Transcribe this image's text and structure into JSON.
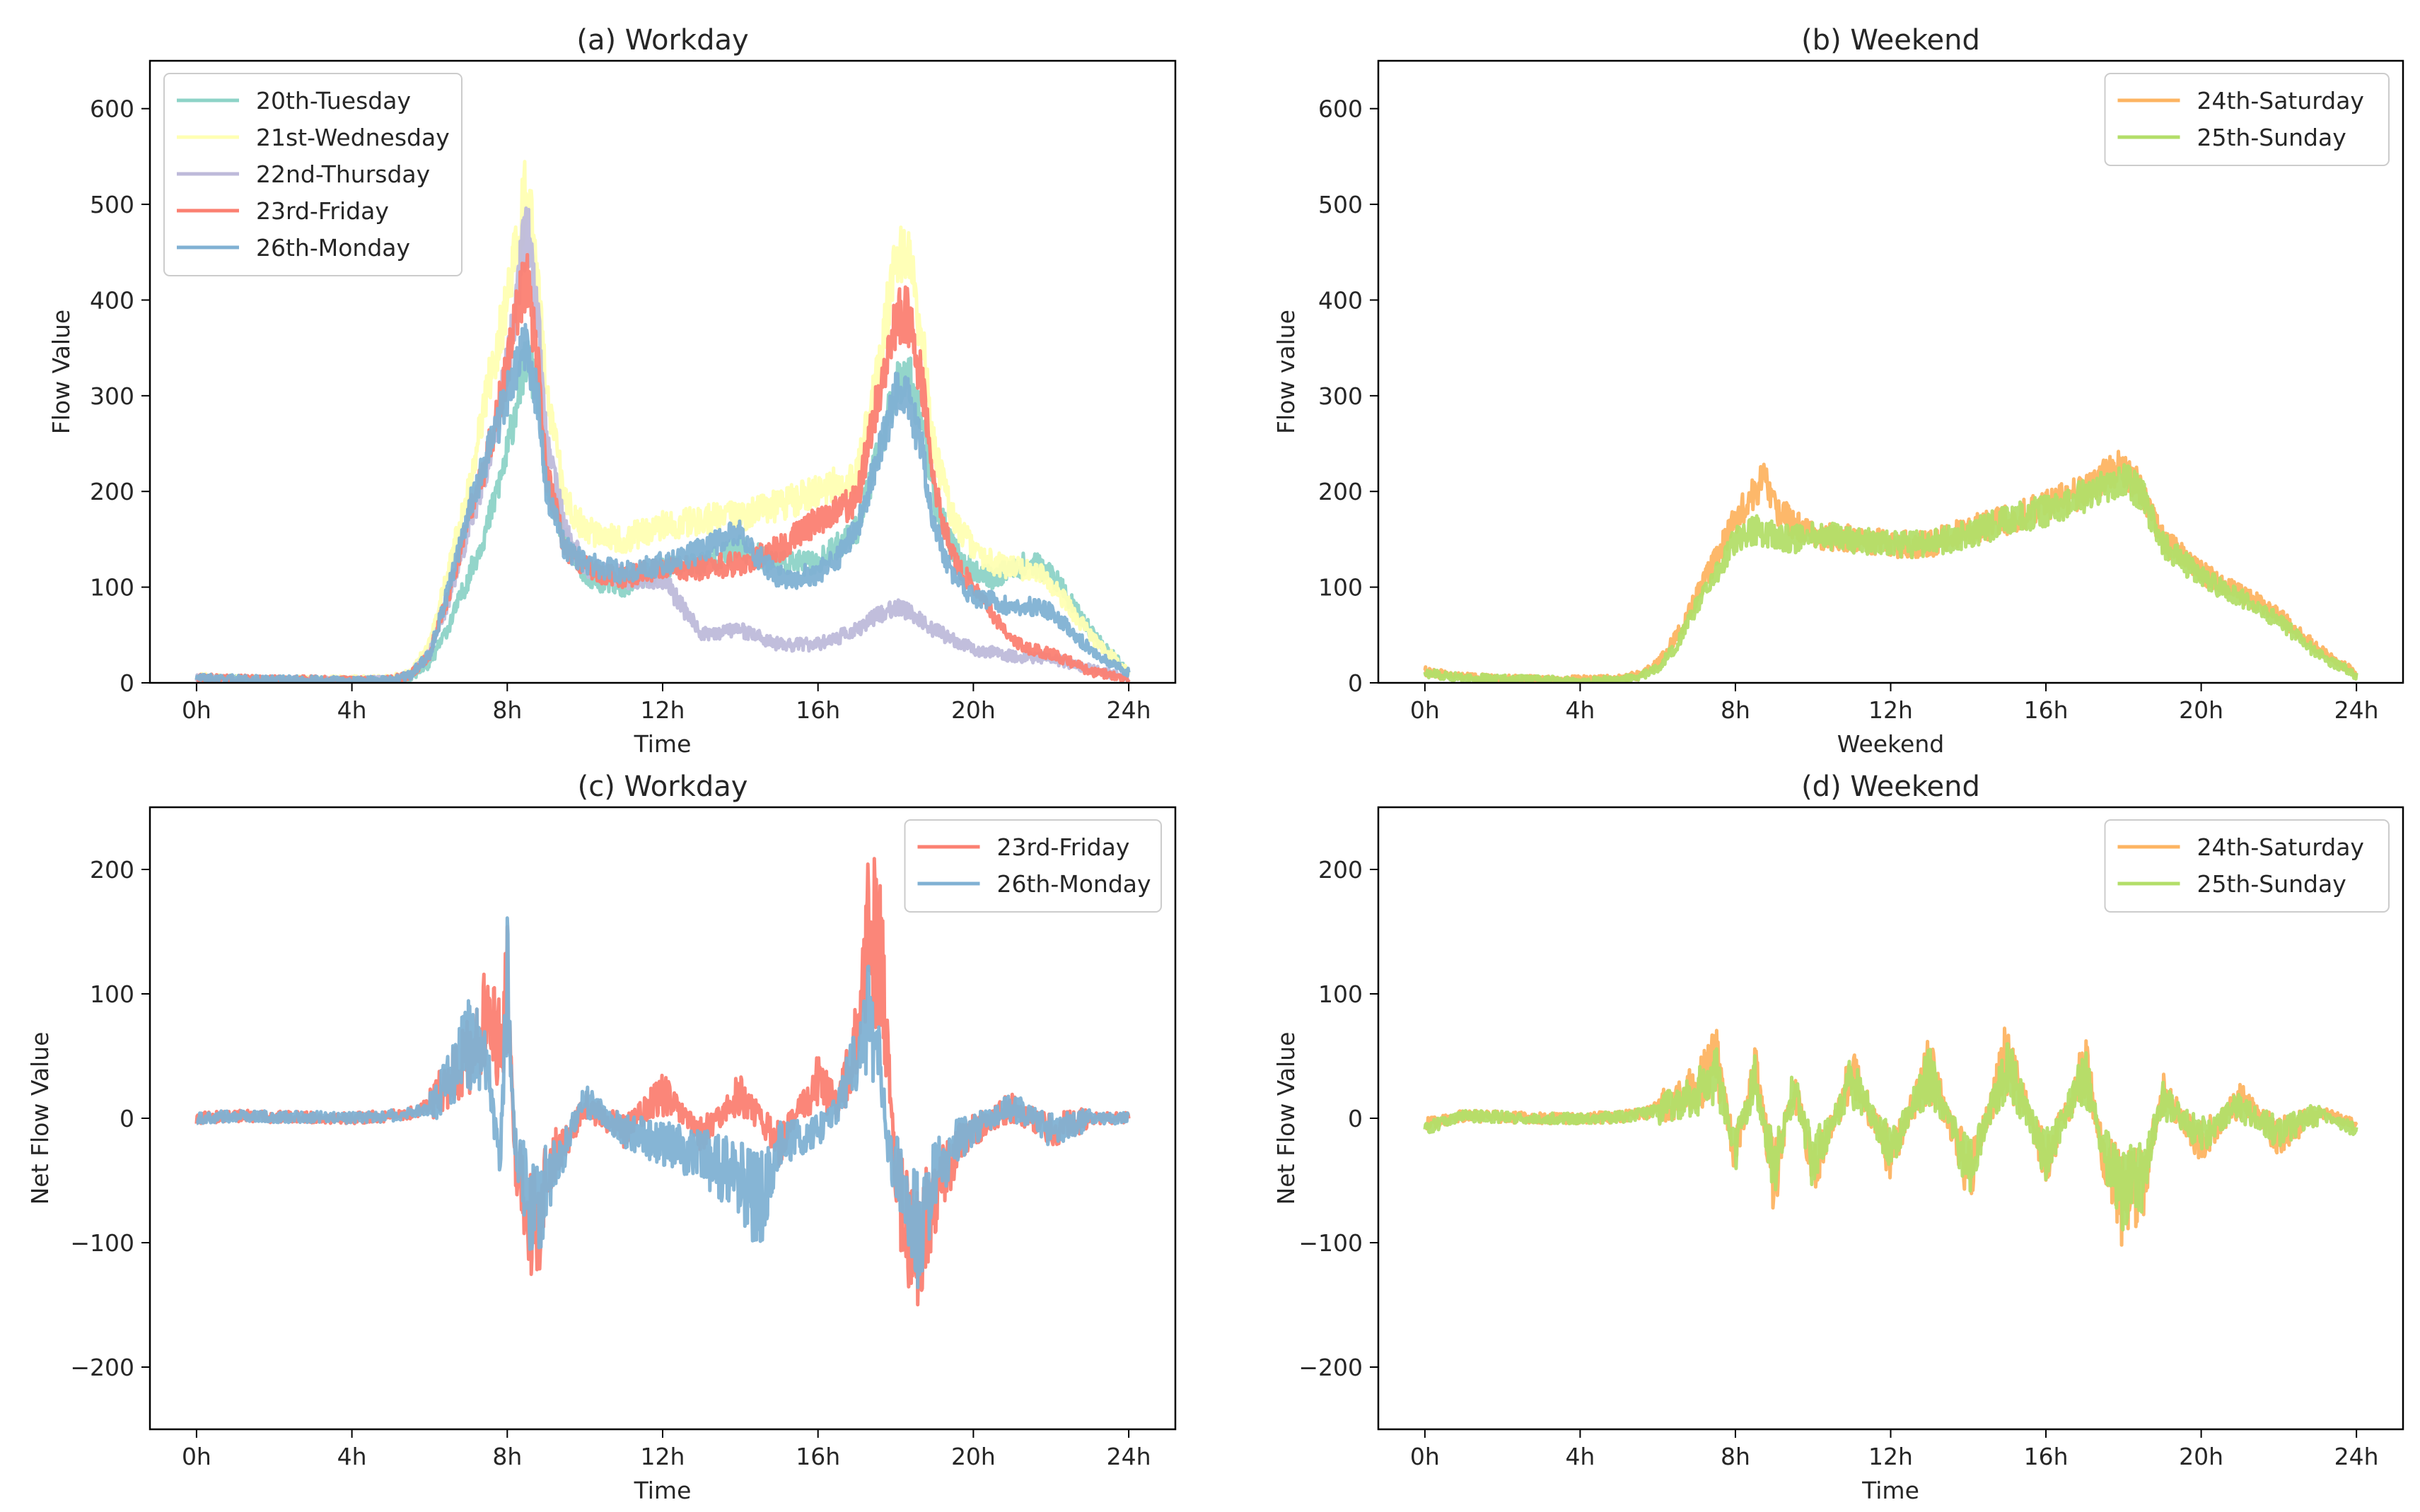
{
  "chart_data": [
    {
      "type": "line",
      "title": "(a) Workday",
      "xlabel": "Time",
      "ylabel": "Flow Value",
      "xlim": [
        -1.2,
        25.2
      ],
      "ylim": [
        0,
        650
      ],
      "x_ticks": [
        0,
        4,
        8,
        12,
        16,
        20,
        24
      ],
      "x_tick_labels": [
        "0h",
        "4h",
        "8h",
        "12h",
        "16h",
        "20h",
        "24h"
      ],
      "y_ticks": [
        0,
        100,
        200,
        300,
        400,
        500,
        600
      ],
      "y_tick_labels": [
        "0",
        "100",
        "200",
        "300",
        "400",
        "500",
        "600"
      ],
      "legend_position": "top-left",
      "series": [
        {
          "name": "20th-Tuesday",
          "color": "#8dd3c7",
          "x": [
            0,
            1,
            2,
            3,
            4,
            5,
            5.5,
            6,
            6.5,
            7,
            7.5,
            8,
            8.3,
            8.5,
            8.8,
            9,
            9.5,
            10,
            11,
            12,
            13,
            14,
            15,
            16,
            17,
            17.5,
            18,
            18.3,
            18.7,
            19,
            19.5,
            20,
            20.5,
            21,
            21.5,
            22,
            23,
            24
          ],
          "values": [
            4,
            3,
            3,
            2,
            2,
            3,
            6,
            20,
            60,
            110,
            165,
            240,
            310,
            340,
            300,
            210,
            150,
            110,
            100,
            120,
            125,
            140,
            125,
            125,
            160,
            230,
            310,
            325,
            270,
            190,
            140,
            115,
            110,
            120,
            125,
            115,
            55,
            10
          ]
        },
        {
          "name": "21st-Wednesday",
          "color": "#ffffb3",
          "x": [
            0,
            1,
            2,
            3,
            4,
            5,
            5.5,
            6,
            6.5,
            7,
            7.5,
            8,
            8.3,
            8.5,
            8.8,
            9,
            9.5,
            10,
            11,
            12,
            13,
            14,
            15,
            16,
            17,
            17.5,
            18,
            18.3,
            18.7,
            19,
            19.5,
            20,
            20.5,
            21,
            21.5,
            22,
            23,
            24
          ],
          "values": [
            6,
            4,
            3,
            3,
            3,
            4,
            10,
            40,
            120,
            200,
            310,
            400,
            470,
            520,
            420,
            300,
            190,
            160,
            150,
            165,
            170,
            175,
            185,
            200,
            215,
            320,
            440,
            450,
            350,
            240,
            170,
            140,
            125,
            120,
            120,
            105,
            50,
            10
          ]
        },
        {
          "name": "22nd-Thursday",
          "color": "#bebada",
          "x": [
            0,
            1,
            2,
            3,
            4,
            5,
            5.5,
            6,
            6.5,
            7,
            7.5,
            8,
            8.3,
            8.5,
            8.8,
            9,
            9.5,
            10,
            11,
            12,
            12.5,
            13,
            14,
            15,
            16,
            17,
            17.5,
            18,
            18.5,
            19,
            20,
            21,
            22,
            23,
            24
          ],
          "values": [
            4,
            3,
            3,
            2,
            2,
            3,
            8,
            30,
            90,
            160,
            230,
            330,
            420,
            480,
            380,
            250,
            160,
            120,
            110,
            110,
            80,
            50,
            55,
            40,
            40,
            55,
            70,
            80,
            70,
            55,
            35,
            28,
            25,
            15,
            5
          ]
        },
        {
          "name": "23rd-Friday",
          "color": "#fb8072",
          "x": [
            0,
            1,
            2,
            3,
            4,
            5,
            5.5,
            6,
            6.5,
            7,
            7.5,
            8,
            8.3,
            8.5,
            8.8,
            9,
            9.5,
            10,
            11,
            12,
            13,
            14,
            15,
            16,
            17,
            17.5,
            18,
            18.3,
            18.7,
            19,
            19.5,
            20,
            20.5,
            21,
            21.5,
            22,
            22.5,
            23,
            24
          ],
          "values": [
            5,
            4,
            3,
            3,
            2,
            3,
            8,
            30,
            95,
            170,
            240,
            330,
            400,
            420,
            330,
            220,
            140,
            120,
            110,
            120,
            120,
            125,
            140,
            170,
            190,
            290,
            380,
            385,
            310,
            200,
            130,
            100,
            70,
            45,
            35,
            30,
            22,
            12,
            5
          ]
        },
        {
          "name": "26th-Monday",
          "color": "#80b1d3",
          "x": [
            0,
            1,
            2,
            3,
            4,
            5,
            5.5,
            6,
            6.5,
            7,
            7.5,
            8,
            8.3,
            8.5,
            8.8,
            9,
            9.5,
            10,
            11,
            12,
            12.5,
            13,
            13.5,
            14,
            14.5,
            15,
            15.5,
            16,
            16.5,
            17,
            17.5,
            18,
            18.3,
            18.7,
            19,
            19.5,
            20,
            20.5,
            21,
            21.5,
            22,
            23,
            24
          ],
          "values": [
            5,
            4,
            3,
            3,
            2,
            3,
            8,
            30,
            100,
            180,
            240,
            300,
            340,
            350,
            290,
            200,
            140,
            125,
            115,
            125,
            130,
            140,
            150,
            155,
            130,
            110,
            110,
            115,
            130,
            160,
            230,
            300,
            300,
            240,
            160,
            110,
            90,
            85,
            80,
            80,
            75,
            35,
            10
          ]
        }
      ]
    },
    {
      "type": "line",
      "title": "(b) Weekend",
      "xlabel": "Weekend",
      "ylabel": "Flow value",
      "xlim": [
        -1.2,
        25.2
      ],
      "ylim": [
        0,
        650
      ],
      "x_ticks": [
        0,
        4,
        8,
        12,
        16,
        20,
        24
      ],
      "x_tick_labels": [
        "0h",
        "4h",
        "8h",
        "12h",
        "16h",
        "20h",
        "24h"
      ],
      "y_ticks": [
        0,
        100,
        200,
        300,
        400,
        500,
        600
      ],
      "y_tick_labels": [
        "0",
        "100",
        "200",
        "300",
        "400",
        "500",
        "600"
      ],
      "legend_position": "top-right",
      "series": [
        {
          "name": "24th-Saturday",
          "color": "#fdb462",
          "x": [
            0,
            1,
            2,
            3,
            4,
            5,
            5.5,
            6,
            6.5,
            7,
            7.5,
            8,
            8.5,
            8.8,
            9,
            9.5,
            10,
            11,
            12,
            13,
            14,
            15,
            16,
            17,
            17.5,
            18,
            18.5,
            19,
            20,
            21,
            22,
            23,
            24
          ],
          "values": [
            12,
            6,
            4,
            3,
            3,
            4,
            8,
            20,
            50,
            90,
            130,
            170,
            200,
            215,
            185,
            165,
            155,
            150,
            145,
            145,
            160,
            170,
            185,
            200,
            215,
            225,
            200,
            150,
            115,
            95,
            70,
            35,
            10
          ]
        },
        {
          "name": "25th-Sunday",
          "color": "#b3de69",
          "x": [
            0,
            1,
            2,
            3,
            4,
            5,
            5.5,
            6,
            6.5,
            7,
            7.5,
            8,
            8.5,
            9,
            9.5,
            10,
            11,
            12,
            13,
            14,
            15,
            16,
            17,
            17.5,
            18,
            18.5,
            19,
            20,
            21,
            22,
            23,
            24
          ],
          "values": [
            10,
            5,
            4,
            3,
            2,
            3,
            6,
            15,
            40,
            80,
            115,
            150,
            160,
            155,
            150,
            155,
            150,
            145,
            145,
            155,
            170,
            180,
            195,
            205,
            215,
            195,
            145,
            110,
            90,
            65,
            30,
            8
          ]
        }
      ]
    },
    {
      "type": "line",
      "title": "(c) Workday",
      "xlabel": "Time",
      "ylabel": "Net Flow Value",
      "xlim": [
        -1.2,
        25.2
      ],
      "ylim": [
        -250,
        250
      ],
      "x_ticks": [
        0,
        4,
        8,
        12,
        16,
        20,
        24
      ],
      "x_tick_labels": [
        "0h",
        "4h",
        "8h",
        "12h",
        "16h",
        "20h",
        "24h"
      ],
      "y_ticks": [
        -200,
        -100,
        0,
        100,
        200
      ],
      "y_tick_labels": [
        "−200",
        "−100",
        "0",
        "100",
        "200"
      ],
      "legend_position": "top-right",
      "series": [
        {
          "name": "23rd-Friday",
          "color": "#fb8072",
          "x": [
            0,
            1,
            2,
            3,
            4,
            5,
            5.5,
            6,
            6.5,
            7,
            7.5,
            7.8,
            8,
            8.2,
            8.5,
            8.8,
            9,
            9.5,
            10,
            11,
            12,
            13,
            14,
            15,
            16,
            16.5,
            17,
            17.3,
            17.6,
            17.8,
            18,
            18.3,
            18.6,
            19,
            19.5,
            20,
            21,
            22,
            23,
            24
          ],
          "values": [
            0,
            2,
            1,
            1,
            0,
            2,
            4,
            10,
            30,
            50,
            80,
            60,
            100,
            -30,
            -70,
            -100,
            -40,
            -20,
            10,
            -10,
            20,
            -15,
            20,
            -20,
            30,
            10,
            60,
            140,
            150,
            50,
            -50,
            -90,
            -110,
            -60,
            -30,
            -10,
            10,
            -10,
            0,
            0
          ]
        },
        {
          "name": "26th-Monday",
          "color": "#80b1d3",
          "x": [
            0,
            1,
            2,
            3,
            4,
            5,
            5.5,
            6,
            6.5,
            7,
            7.5,
            7.8,
            8,
            8.2,
            8.5,
            8.8,
            9,
            9.5,
            10,
            11,
            12,
            13,
            14,
            14.5,
            15,
            16,
            16.5,
            17,
            17.3,
            17.6,
            17.8,
            18,
            18.3,
            18.6,
            19,
            19.5,
            20,
            21,
            22,
            23,
            24
          ],
          "values": [
            0,
            2,
            1,
            1,
            0,
            2,
            4,
            8,
            30,
            60,
            50,
            -50,
            115,
            -20,
            -60,
            -90,
            -50,
            -20,
            15,
            -10,
            -20,
            -30,
            -50,
            -70,
            -20,
            -10,
            10,
            50,
            80,
            40,
            -20,
            -40,
            -70,
            -90,
            -50,
            -20,
            -10,
            10,
            -10,
            0,
            0
          ]
        }
      ]
    },
    {
      "type": "line",
      "title": "(d) Weekend",
      "xlabel": "Time",
      "ylabel": "Net Flow Value",
      "xlim": [
        -1.2,
        25.2
      ],
      "ylim": [
        -250,
        250
      ],
      "x_ticks": [
        0,
        4,
        8,
        12,
        16,
        20,
        24
      ],
      "x_tick_labels": [
        "0h",
        "4h",
        "8h",
        "12h",
        "16h",
        "20h",
        "24h"
      ],
      "y_ticks": [
        -200,
        -100,
        0,
        100,
        200
      ],
      "y_tick_labels": [
        "−200",
        "−100",
        "0",
        "100",
        "200"
      ],
      "legend_position": "top-right",
      "series": [
        {
          "name": "24th-Saturday",
          "color": "#fdb462",
          "x": [
            0,
            1,
            2,
            3,
            4,
            5,
            5.5,
            6,
            6.5,
            7,
            7.5,
            8,
            8.5,
            9,
            9.5,
            10,
            11,
            12,
            13,
            14,
            15,
            16,
            17,
            17.5,
            18,
            18.5,
            19,
            20,
            21,
            22,
            23,
            24
          ],
          "values": [
            -5,
            2,
            1,
            0,
            0,
            1,
            3,
            8,
            15,
            25,
            45,
            -30,
            40,
            -50,
            30,
            -40,
            35,
            -30,
            40,
            -45,
            50,
            -35,
            45,
            -30,
            -70,
            -50,
            20,
            -20,
            15,
            -15,
            5,
            -5
          ]
        },
        {
          "name": "25th-Sunday",
          "color": "#b3de69",
          "x": [
            0,
            1,
            2,
            3,
            4,
            5,
            5.5,
            6,
            6.5,
            7,
            7.5,
            8,
            8.5,
            9,
            9.5,
            10,
            11,
            12,
            13,
            14,
            15,
            16,
            17,
            17.5,
            18,
            18.5,
            19,
            20,
            21,
            22,
            23,
            24
          ],
          "values": [
            -8,
            2,
            1,
            0,
            0,
            1,
            3,
            6,
            12,
            20,
            35,
            -25,
            30,
            -40,
            25,
            -35,
            30,
            -25,
            35,
            -40,
            40,
            -30,
            35,
            -25,
            -60,
            -45,
            15,
            -15,
            10,
            -12,
            5,
            -10
          ]
        }
      ]
    }
  ]
}
